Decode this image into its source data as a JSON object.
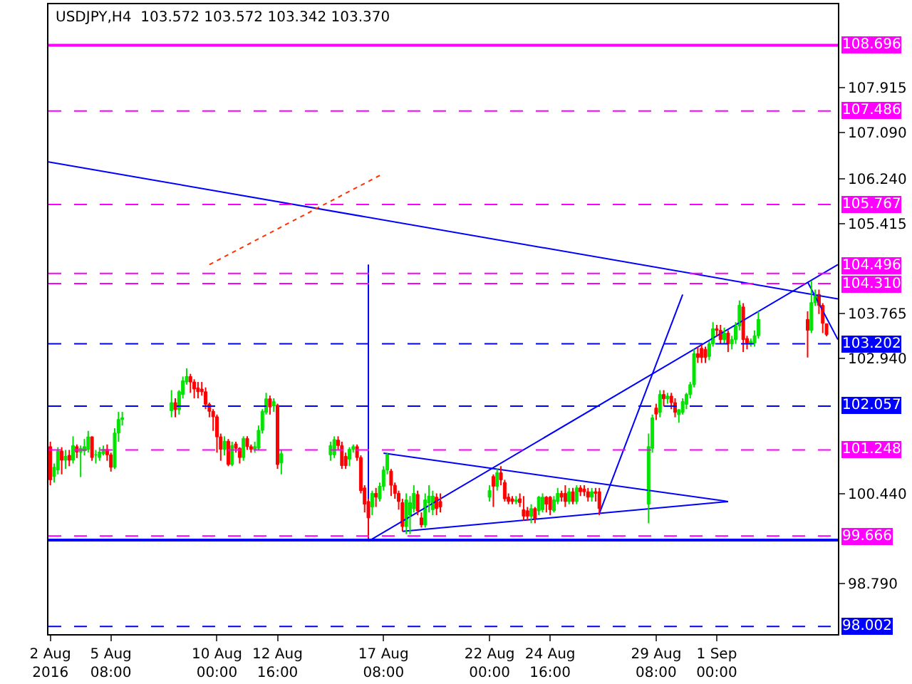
{
  "chart_data": {
    "type": "candlestick",
    "title": "USDJPY,H4  103.572 103.572 103.342 103.370",
    "x": [
      "2016-08-02T16:00",
      "2016-08-02T20:00",
      "2016-08-03T00:00",
      "2016-08-03T04:00",
      "2016-08-03T08:00",
      "2016-08-03T12:00",
      "2016-08-03T16:00",
      "2016-08-03T20:00",
      "2016-08-04T00:00",
      "2016-08-04T04:00",
      "2016-08-04T08:00",
      "2016-08-04T12:00",
      "2016-08-04T16:00",
      "2016-08-04T20:00",
      "2016-08-05T00:00",
      "2016-08-05T04:00",
      "2016-08-05T08:00",
      "2016-08-05T12:00",
      "2016-08-05T16:00",
      "2016-08-05T20:00",
      "2016-08-08T00:00",
      "2016-08-08T04:00",
      "2016-08-08T08:00",
      "2016-08-08T12:00",
      "2016-08-08T16:00",
      "2016-08-08T20:00",
      "2016-08-09T00:00",
      "2016-08-09T04:00",
      "2016-08-09T08:00",
      "2016-08-09T12:00",
      "2016-08-09T16:00",
      "2016-08-09T20:00",
      "2016-08-10T00:00",
      "2016-08-10T04:00",
      "2016-08-10T08:00",
      "2016-08-10T12:00",
      "2016-08-10T16:00",
      "2016-08-10T20:00",
      "2016-08-11T00:00",
      "2016-08-11T04:00",
      "2016-08-11T08:00",
      "2016-08-11T12:00",
      "2016-08-11T16:00",
      "2016-08-11T20:00",
      "2016-08-12T00:00",
      "2016-08-12T04:00",
      "2016-08-12T08:00",
      "2016-08-12T12:00",
      "2016-08-12T16:00",
      "2016-08-12T20:00",
      "2016-08-15T00:00",
      "2016-08-15T04:00",
      "2016-08-15T08:00",
      "2016-08-15T12:00",
      "2016-08-15T16:00",
      "2016-08-15T20:00",
      "2016-08-16T00:00",
      "2016-08-16T04:00",
      "2016-08-16T08:00",
      "2016-08-16T12:00",
      "2016-08-16T16:00",
      "2016-08-16T20:00",
      "2016-08-17T00:00",
      "2016-08-17T04:00",
      "2016-08-17T08:00",
      "2016-08-17T12:00",
      "2016-08-17T16:00",
      "2016-08-17T20:00",
      "2016-08-18T00:00",
      "2016-08-18T04:00",
      "2016-08-18T08:00",
      "2016-08-18T12:00",
      "2016-08-18T16:00",
      "2016-08-18T20:00",
      "2016-08-19T00:00",
      "2016-08-19T04:00",
      "2016-08-19T08:00",
      "2016-08-19T12:00",
      "2016-08-19T16:00",
      "2016-08-19T20:00",
      "2016-08-22T00:00",
      "2016-08-22T04:00",
      "2016-08-22T08:00",
      "2016-08-22T12:00",
      "2016-08-22T16:00",
      "2016-08-22T20:00",
      "2016-08-23T00:00",
      "2016-08-23T04:00",
      "2016-08-23T08:00",
      "2016-08-23T12:00",
      "2016-08-23T16:00",
      "2016-08-23T20:00",
      "2016-08-24T00:00",
      "2016-08-24T04:00",
      "2016-08-24T08:00",
      "2016-08-24T12:00",
      "2016-08-24T16:00",
      "2016-08-24T20:00",
      "2016-08-25T00:00",
      "2016-08-25T04:00",
      "2016-08-25T08:00",
      "2016-08-25T12:00",
      "2016-08-25T16:00",
      "2016-08-25T20:00",
      "2016-08-26T00:00",
      "2016-08-26T04:00",
      "2016-08-26T08:00",
      "2016-08-26T12:00",
      "2016-08-26T16:00",
      "2016-08-26T20:00",
      "2016-08-29T00:00",
      "2016-08-29T04:00",
      "2016-08-29T08:00",
      "2016-08-29T12:00",
      "2016-08-29T16:00",
      "2016-08-29T20:00",
      "2016-08-30T00:00",
      "2016-08-30T04:00",
      "2016-08-30T08:00",
      "2016-08-30T12:00",
      "2016-08-30T16:00",
      "2016-08-30T20:00",
      "2016-08-31T00:00",
      "2016-08-31T04:00",
      "2016-08-31T08:00",
      "2016-08-31T12:00",
      "2016-08-31T16:00",
      "2016-08-31T20:00",
      "2016-09-01T00:00",
      "2016-09-01T04:00",
      "2016-09-01T08:00",
      "2016-09-01T12:00",
      "2016-09-01T16:00",
      "2016-09-01T20:00",
      "2016-09-02T00:00",
      "2016-09-02T04:00",
      "2016-09-02T08:00",
      "2016-09-02T12:00",
      "2016-09-02T16:00",
      "2016-09-02T20:00",
      "2016-09-05T00:00",
      "2016-09-05T04:00",
      "2016-09-05T08:00",
      "2016-09-05T12:00",
      "2016-09-05T16:00",
      "2016-09-05T20:00"
    ],
    "ohlc": [
      [
        101.31,
        101.4,
        100.6,
        100.7
      ],
      [
        100.76,
        101.0,
        100.65,
        100.93
      ],
      [
        100.88,
        101.3,
        100.8,
        101.23
      ],
      [
        101.23,
        101.3,
        100.8,
        101.06
      ],
      [
        101.06,
        101.25,
        100.9,
        101.13
      ],
      [
        101.15,
        101.25,
        100.95,
        101.06
      ],
      [
        101.06,
        101.5,
        101.0,
        101.33
      ],
      [
        101.31,
        101.35,
        101.1,
        101.21
      ],
      [
        101.21,
        101.33,
        100.75,
        101.28
      ],
      [
        101.23,
        101.45,
        101.15,
        101.31
      ],
      [
        101.26,
        101.6,
        101.2,
        101.49
      ],
      [
        101.49,
        101.5,
        101.05,
        101.11
      ],
      [
        101.16,
        101.25,
        101.0,
        101.16
      ],
      [
        101.11,
        101.3,
        101.05,
        101.21
      ],
      [
        101.18,
        101.33,
        101.15,
        101.26
      ],
      [
        101.26,
        101.35,
        101.05,
        101.16
      ],
      [
        101.16,
        101.2,
        100.85,
        100.93
      ],
      [
        100.93,
        101.65,
        100.9,
        101.56
      ],
      [
        101.56,
        101.95,
        101.4,
        101.81
      ],
      [
        101.81,
        101.95,
        101.7,
        101.84
      ],
      [
        101.97,
        102.35,
        101.85,
        102.12
      ],
      [
        102.12,
        102.2,
        101.85,
        101.99
      ],
      [
        101.99,
        102.35,
        101.9,
        102.32
      ],
      [
        102.27,
        102.6,
        102.2,
        102.52
      ],
      [
        102.5,
        102.75,
        102.45,
        102.6
      ],
      [
        102.6,
        102.65,
        102.3,
        102.5
      ],
      [
        102.5,
        102.55,
        102.2,
        102.37
      ],
      [
        102.39,
        102.5,
        102.2,
        102.32
      ],
      [
        102.37,
        102.5,
        102.25,
        102.32
      ],
      [
        102.32,
        102.4,
        102.0,
        102.09
      ],
      [
        102.09,
        102.12,
        101.85,
        101.96
      ],
      [
        101.96,
        102.0,
        101.6,
        101.86
      ],
      [
        101.86,
        101.9,
        101.2,
        101.49
      ],
      [
        101.49,
        101.55,
        101.05,
        101.26
      ],
      [
        101.26,
        101.5,
        101.15,
        101.41
      ],
      [
        101.41,
        101.45,
        100.95,
        100.98
      ],
      [
        100.98,
        101.4,
        100.95,
        101.33
      ],
      [
        101.36,
        101.4,
        101.2,
        101.28
      ],
      [
        101.28,
        101.3,
        101.0,
        101.11
      ],
      [
        101.11,
        101.5,
        101.05,
        101.46
      ],
      [
        101.46,
        101.5,
        101.25,
        101.31
      ],
      [
        101.31,
        101.35,
        101.2,
        101.26
      ],
      [
        101.26,
        101.4,
        101.2,
        101.31
      ],
      [
        101.28,
        101.7,
        101.25,
        101.61
      ],
      [
        101.61,
        102.0,
        101.55,
        101.96
      ],
      [
        101.94,
        102.3,
        101.9,
        102.19
      ],
      [
        102.19,
        102.25,
        101.9,
        102.04
      ],
      [
        102.06,
        102.2,
        101.95,
        102.14
      ],
      [
        102.07,
        102.1,
        100.9,
        100.98
      ],
      [
        101.01,
        101.25,
        100.8,
        101.18
      ],
      [
        101.16,
        101.4,
        101.05,
        101.33
      ],
      [
        101.16,
        101.5,
        101.1,
        101.44
      ],
      [
        101.43,
        101.5,
        101.25,
        101.33
      ],
      [
        101.33,
        101.4,
        100.9,
        100.96
      ],
      [
        101.13,
        101.2,
        100.9,
        100.96
      ],
      [
        101.08,
        101.3,
        100.95,
        101.26
      ],
      [
        101.26,
        101.35,
        101.2,
        101.31
      ],
      [
        101.31,
        101.35,
        101.05,
        101.11
      ],
      [
        101.11,
        101.15,
        100.45,
        100.5
      ],
      [
        100.55,
        100.6,
        100.1,
        100.25
      ],
      [
        100.3,
        100.35,
        99.62,
        100.0
      ],
      [
        100.2,
        100.5,
        100.05,
        100.45
      ],
      [
        100.45,
        100.55,
        100.2,
        100.38
      ],
      [
        100.35,
        100.65,
        100.3,
        100.58
      ],
      [
        100.58,
        100.95,
        100.5,
        100.88
      ],
      [
        100.88,
        101.2,
        100.8,
        101.16
      ],
      [
        100.86,
        100.9,
        100.4,
        100.6
      ],
      [
        100.6,
        100.65,
        100.35,
        100.45
      ],
      [
        100.45,
        100.5,
        100.15,
        100.3
      ],
      [
        100.28,
        100.35,
        99.75,
        99.84
      ],
      [
        99.84,
        100.45,
        99.7,
        100.33
      ],
      [
        100.05,
        100.4,
        99.7,
        100.28
      ],
      [
        100.17,
        100.6,
        100.1,
        100.45
      ],
      [
        100.43,
        100.5,
        100.05,
        100.13
      ],
      [
        100.0,
        100.1,
        99.82,
        99.87
      ],
      [
        99.87,
        100.45,
        99.82,
        100.33
      ],
      [
        100.28,
        100.6,
        100.1,
        100.4
      ],
      [
        100.15,
        100.5,
        100.05,
        100.4
      ],
      [
        100.38,
        100.45,
        100.05,
        100.17
      ],
      [
        100.3,
        100.45,
        100.1,
        100.2
      ],
      [
        100.38,
        100.6,
        100.3,
        100.5
      ],
      [
        100.76,
        100.8,
        100.2,
        100.58
      ],
      [
        100.58,
        100.9,
        100.5,
        100.83
      ],
      [
        100.83,
        100.95,
        100.6,
        100.7
      ],
      [
        100.65,
        100.7,
        100.3,
        100.35
      ],
      [
        100.38,
        100.45,
        100.25,
        100.3
      ],
      [
        100.35,
        100.4,
        100.25,
        100.3
      ],
      [
        100.3,
        100.4,
        100.25,
        100.33
      ],
      [
        100.35,
        100.45,
        100.2,
        100.28
      ],
      [
        100.15,
        100.4,
        99.95,
        100.03
      ],
      [
        100.13,
        100.2,
        99.95,
        100.03
      ],
      [
        100.03,
        100.25,
        99.9,
        100.17
      ],
      [
        100.17,
        100.2,
        99.9,
        99.98
      ],
      [
        100.13,
        100.4,
        100.05,
        100.38
      ],
      [
        100.15,
        100.45,
        100.1,
        100.38
      ],
      [
        100.38,
        100.4,
        100.1,
        100.25
      ],
      [
        100.38,
        100.4,
        100.05,
        100.15
      ],
      [
        100.13,
        100.4,
        100.1,
        100.33
      ],
      [
        100.3,
        100.55,
        100.25,
        100.45
      ],
      [
        100.45,
        100.5,
        100.3,
        100.38
      ],
      [
        100.45,
        100.6,
        100.2,
        100.3
      ],
      [
        100.3,
        100.55,
        100.25,
        100.48
      ],
      [
        100.48,
        100.55,
        100.25,
        100.3
      ],
      [
        100.3,
        100.6,
        100.25,
        100.55
      ],
      [
        100.55,
        100.6,
        100.4,
        100.48
      ],
      [
        100.53,
        100.6,
        100.4,
        100.48
      ],
      [
        100.48,
        100.55,
        100.3,
        100.38
      ],
      [
        100.38,
        100.55,
        100.3,
        100.48
      ],
      [
        100.48,
        100.55,
        100.3,
        100.45
      ],
      [
        100.48,
        100.55,
        100.05,
        100.17
      ],
      [
        100.25,
        101.55,
        99.9,
        101.31
      ],
      [
        101.28,
        101.9,
        101.2,
        101.84
      ],
      [
        102.02,
        102.1,
        101.8,
        101.91
      ],
      [
        101.94,
        102.35,
        101.85,
        102.27
      ],
      [
        102.27,
        102.35,
        102.05,
        102.19
      ],
      [
        102.19,
        102.3,
        102.1,
        102.24
      ],
      [
        102.24,
        102.3,
        102.0,
        102.12
      ],
      [
        102.12,
        102.2,
        101.85,
        101.94
      ],
      [
        101.9,
        102.0,
        101.75,
        101.99
      ],
      [
        101.94,
        102.2,
        101.9,
        102.14
      ],
      [
        102.09,
        102.3,
        102.0,
        102.27
      ],
      [
        102.27,
        102.5,
        102.2,
        102.45
      ],
      [
        102.45,
        103.1,
        102.4,
        103.02
      ],
      [
        103.02,
        103.15,
        102.85,
        102.95
      ],
      [
        103.12,
        103.2,
        102.85,
        102.95
      ],
      [
        103.1,
        103.15,
        102.85,
        102.95
      ],
      [
        102.97,
        103.25,
        102.9,
        103.2
      ],
      [
        103.2,
        103.6,
        103.15,
        103.48
      ],
      [
        103.48,
        103.55,
        103.35,
        103.45
      ],
      [
        103.45,
        103.55,
        103.2,
        103.28
      ],
      [
        103.28,
        103.5,
        103.2,
        103.4
      ],
      [
        103.4,
        103.45,
        103.05,
        103.2
      ],
      [
        103.2,
        103.35,
        103.1,
        103.28
      ],
      [
        103.28,
        103.6,
        103.2,
        103.53
      ],
      [
        103.53,
        104.0,
        103.45,
        103.91
      ],
      [
        103.88,
        103.95,
        103.05,
        103.28
      ],
      [
        103.3,
        103.35,
        103.1,
        103.22
      ],
      [
        103.2,
        103.3,
        103.15,
        103.25
      ],
      [
        103.22,
        103.45,
        103.15,
        103.35
      ],
      [
        103.35,
        103.8,
        103.3,
        103.65
      ],
      [
        103.65,
        103.8,
        102.95,
        103.45
      ],
      [
        103.45,
        104.36,
        103.4,
        103.96
      ],
      [
        103.96,
        104.2,
        103.9,
        104.09
      ],
      [
        104.11,
        104.2,
        103.75,
        103.91
      ],
      [
        103.91,
        103.95,
        103.4,
        103.58
      ],
      [
        103.572,
        103.572,
        103.342,
        103.37
      ]
    ],
    "series": [
      {
        "type": "line",
        "x": [
          "2016-08-02T14:00",
          "2016-09-06T08:00"
        ],
        "values": [
          106.55,
          104.03
        ],
        "color": "#0000ff",
        "line_style": "solid"
      },
      {
        "type": "line",
        "x": [
          "2016-08-16T16:00",
          "2016-09-06T08:00"
        ],
        "values": [
          99.57,
          104.66
        ],
        "color": "#0000ff",
        "line_style": "solid"
      },
      {
        "type": "line",
        "x": [
          "2016-08-16T16:00",
          "2016-08-16T16:00"
        ],
        "values": [
          99.57,
          104.66
        ],
        "color": "#0000ff",
        "line_style": "solid"
      },
      {
        "type": "line",
        "x": [
          "2016-08-17T08:00",
          "2016-09-01T12:00"
        ],
        "values": [
          101.19,
          100.3
        ],
        "color": "#0000ff",
        "line_style": "solid"
      },
      {
        "type": "line",
        "x": [
          "2016-08-18T04:00",
          "2016-09-01T12:00"
        ],
        "values": [
          99.75,
          100.3
        ],
        "color": "#0000ff",
        "line_style": "solid"
      },
      {
        "type": "line",
        "x": [
          "2016-08-26T20:00",
          "2016-08-30T12:00"
        ],
        "values": [
          100.08,
          104.11
        ],
        "color": "#0000ff",
        "line_style": "solid"
      },
      {
        "type": "line",
        "x": [
          "2016-09-05T00:00",
          "2016-09-06T08:00"
        ],
        "values": [
          104.34,
          103.28
        ],
        "color": "#0000ff",
        "line_style": "solid"
      },
      {
        "type": "line",
        "x": [
          "2016-08-09T16:00",
          "2016-08-17T04:00"
        ],
        "values": [
          104.66,
          106.3
        ],
        "color": "#ff3300",
        "line_style": "dotted"
      }
    ],
    "xlim": [
      "2016-08-02T14:00",
      "2016-09-06T08:00"
    ],
    "xticks": [
      {
        "value": "2016-08-02T16:00",
        "label": "2 Aug 2016"
      },
      {
        "value": "2016-08-05T08:00",
        "label": "5 Aug 08:00"
      },
      {
        "value": "2016-08-10T00:00",
        "label": "10 Aug 00:00"
      },
      {
        "value": "2016-08-12T16:00",
        "label": "12 Aug 16:00"
      },
      {
        "value": "2016-08-17T08:00",
        "label": "17 Aug 08:00"
      },
      {
        "value": "2016-08-22T00:00",
        "label": "22 Aug 00:00"
      },
      {
        "value": "2016-08-24T16:00",
        "label": "24 Aug 16:00"
      },
      {
        "value": "2016-08-29T08:00",
        "label": "29 Aug 08:00"
      },
      {
        "value": "2016-09-01T00:00",
        "label": "1 Sep 00:00"
      }
    ],
    "ylim": [
      97.86,
      109.45
    ],
    "yticks": [
      {
        "value": 107.915,
        "label": "107.915"
      },
      {
        "value": 107.09,
        "label": "107.090"
      },
      {
        "value": 106.24,
        "label": "106.240"
      },
      {
        "value": 105.415,
        "label": "105.415"
      },
      {
        "value": 103.765,
        "label": "103.765"
      },
      {
        "value": 102.94,
        "label": "102.940"
      },
      {
        "value": 100.44,
        "label": "100.440"
      },
      {
        "value": 98.79,
        "label": "98.790"
      }
    ],
    "ref_lines": [
      {
        "axis": "y",
        "value": 108.696,
        "label": "108.696",
        "color": "#ff00ff",
        "line_style": "solid"
      },
      {
        "axis": "y",
        "value": 107.486,
        "label": "107.486",
        "color": "#ff00ff",
        "line_style": "dashed"
      },
      {
        "axis": "y",
        "value": 105.767,
        "label": "105.767",
        "color": "#ff00ff",
        "line_style": "dashed"
      },
      {
        "axis": "y",
        "value": 104.496,
        "label": "104.496",
        "color": "#ff00ff",
        "line_style": "dashed"
      },
      {
        "axis": "y",
        "value": 104.31,
        "label": "104.310",
        "color": "#ff00ff",
        "line_style": "dashed"
      },
      {
        "axis": "y",
        "value": 103.202,
        "label": "103.202",
        "color": "#0000ff",
        "line_style": "dashed"
      },
      {
        "axis": "y",
        "value": 102.057,
        "label": "102.057",
        "color": "#0000ff",
        "line_style": "dashed"
      },
      {
        "axis": "y",
        "value": 101.248,
        "label": "101.248",
        "color": "#ff00ff",
        "line_style": "dashed"
      },
      {
        "axis": "y",
        "value": 99.666,
        "label": "99.666",
        "color": "#ff00ff",
        "line_style": "dashed"
      },
      {
        "axis": "y",
        "value": 99.59,
        "color": "#0000ff",
        "line_style": "solid"
      },
      {
        "axis": "y",
        "value": 98.002,
        "label": "98.002",
        "color": "#0000ff",
        "line_style": "dashed"
      }
    ]
  }
}
